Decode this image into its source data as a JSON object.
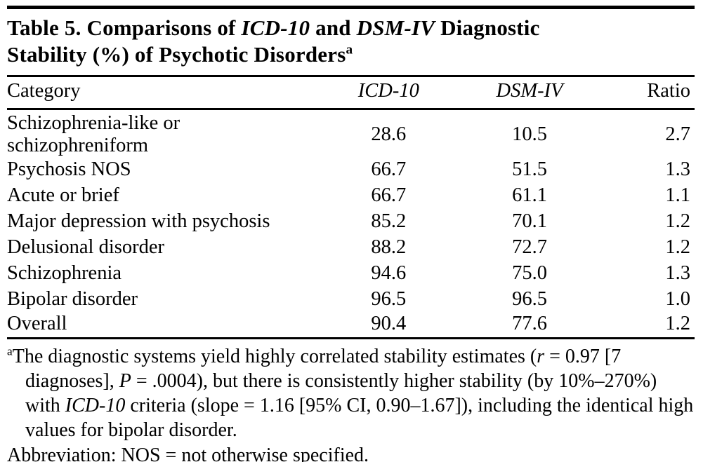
{
  "title": {
    "t1": "Table 5. Comparisons of ",
    "t2": "ICD-10",
    "t3": " and ",
    "t4": "DSM-IV",
    "t5": " Diagnostic",
    "t6": "Stability (%) of Psychotic Disorders",
    "sup": "a"
  },
  "header": {
    "category": "Category",
    "icd10": "ICD-10",
    "dsm4": "DSM-IV",
    "ratio": "Ratio"
  },
  "rows": [
    [
      "Schizophrenia-like or schizophreniform",
      "28.6",
      "10.5",
      "2.7"
    ],
    [
      "Psychosis NOS",
      "66.7",
      "51.5",
      "1.3"
    ],
    [
      "Acute or brief",
      "66.7",
      "61.1",
      "1.1"
    ],
    [
      "Major depression with psychosis",
      "85.2",
      "70.1",
      "1.2"
    ],
    [
      "Delusional disorder",
      "88.2",
      "72.7",
      "1.2"
    ],
    [
      "Schizophrenia",
      "94.6",
      "75.0",
      "1.3"
    ],
    [
      "Bipolar disorder",
      "96.5",
      "96.5",
      "1.0"
    ],
    [
      "Overall",
      "90.4",
      "77.6",
      "1.2"
    ]
  ],
  "footnote": {
    "sup": "a",
    "f1": "The diagnostic systems yield highly correlated stability estimates (",
    "f2": "r",
    "f3": " = 0.97 [7 diagnoses], ",
    "f4": "P",
    "f5": " = .0004), but there is consistently higher stability (by 10%–270%) with ",
    "f6": "ICD-10",
    "f7": " criteria (slope = 1.16 [95% CI, 0.90–1.67]), including the identical high values for bipolar disorder."
  },
  "abbreviation": "Abbreviation: NOS = not otherwise specified."
}
